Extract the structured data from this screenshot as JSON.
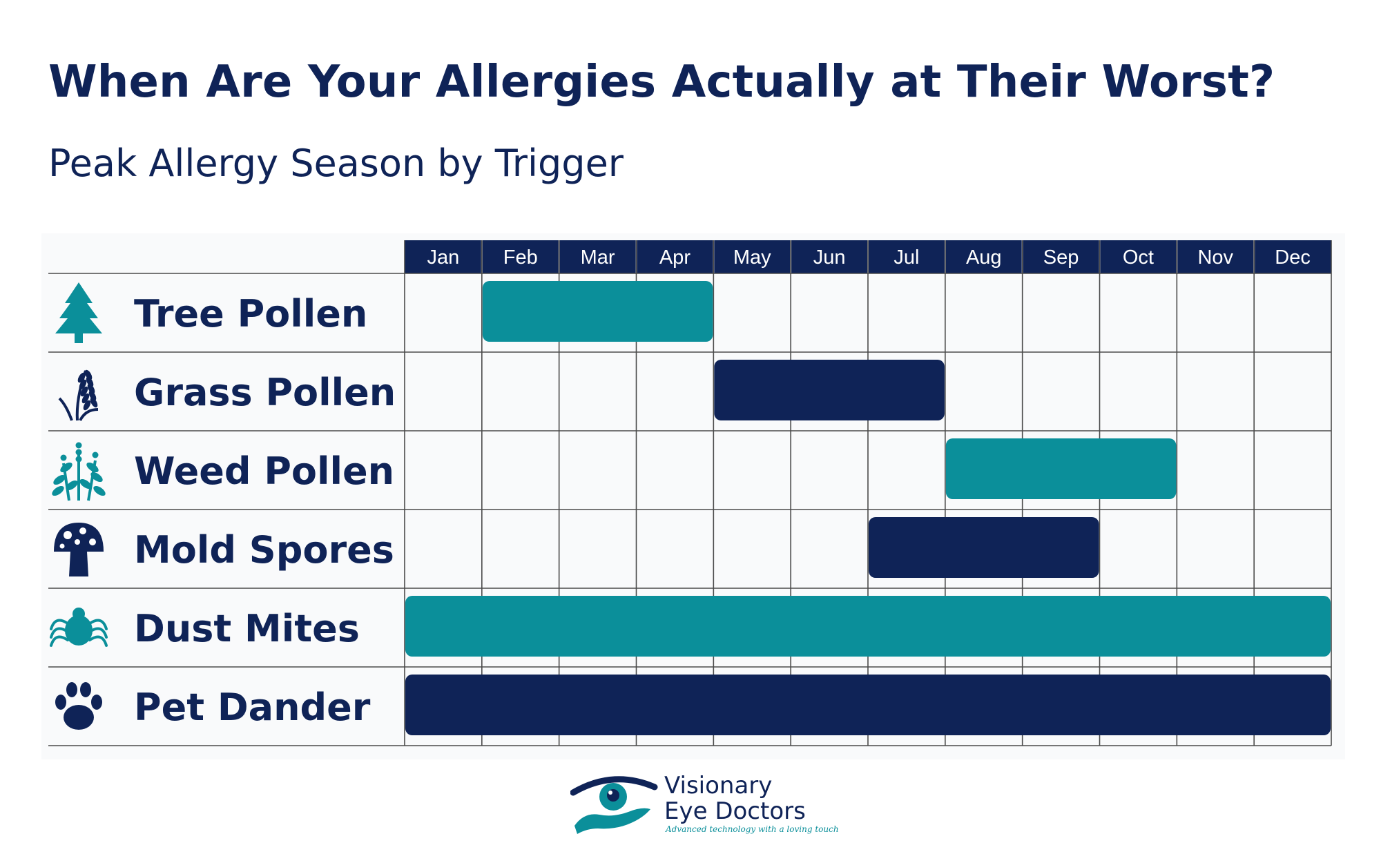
{
  "title": "When Are Your Allergies Actually at Their Worst?",
  "subtitle": "Peak Allergy Season by Trigger",
  "colors": {
    "navy": "#0f2357",
    "teal": "#0b8f9a",
    "grid": "#4a4a4a",
    "header_bg": "#0f2357"
  },
  "chart_data": {
    "type": "gantt",
    "title": "When Are Your Allergies Actually at Their Worst?",
    "subtitle": "Peak Allergy Season by Trigger",
    "months": [
      "Jan",
      "Feb",
      "Mar",
      "Apr",
      "May",
      "Jun",
      "Jul",
      "Aug",
      "Sep",
      "Oct",
      "Nov",
      "Dec"
    ],
    "rows": [
      {
        "label": "Tree Pollen",
        "icon": "tree-icon",
        "start": "Feb",
        "end": "Apr",
        "color": "#0b8f9a"
      },
      {
        "label": "Grass Pollen",
        "icon": "grass-icon",
        "start": "May",
        "end": "Jul",
        "color": "#0f2357"
      },
      {
        "label": "Weed Pollen",
        "icon": "weed-icon",
        "start": "Aug",
        "end": "Oct",
        "color": "#0b8f9a"
      },
      {
        "label": "Mold Spores",
        "icon": "mushroom-icon",
        "start": "Jul",
        "end": "Sep",
        "color": "#0f2357"
      },
      {
        "label": "Dust Mites",
        "icon": "mite-icon",
        "start": "Jan",
        "end": "Dec",
        "color": "#0b8f9a"
      },
      {
        "label": "Pet Dander",
        "icon": "paw-icon",
        "start": "Jan",
        "end": "Dec",
        "color": "#0f2357"
      }
    ]
  },
  "logo": {
    "line1": "Visionary",
    "line2": "Eye Doctors",
    "tagline": "Advanced technology with a loving touch"
  }
}
